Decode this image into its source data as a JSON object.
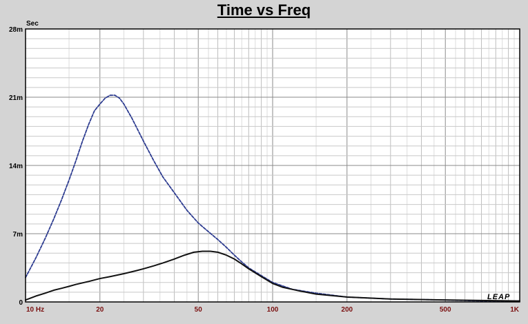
{
  "chart_data": {
    "type": "line",
    "title": "Time vs Freq",
    "ylabel": "Sec",
    "xscale": "log",
    "xlim": [
      10,
      1000
    ],
    "ylim": [
      0,
      0.028
    ],
    "x_tick_labels": [
      {
        "value": 10,
        "label": "10 Hz"
      },
      {
        "value": 20,
        "label": "20"
      },
      {
        "value": 50,
        "label": "50"
      },
      {
        "value": 100,
        "label": "100"
      },
      {
        "value": 200,
        "label": "200"
      },
      {
        "value": 500,
        "label": "500"
      },
      {
        "value": 1000,
        "label": "1K"
      }
    ],
    "y_tick_labels": [
      {
        "value": 0,
        "label": "0"
      },
      {
        "value": 0.007,
        "label": "7m"
      },
      {
        "value": 0.014,
        "label": "14m"
      },
      {
        "value": 0.021,
        "label": "21m"
      },
      {
        "value": 0.028,
        "label": "28m"
      }
    ],
    "grid": true,
    "series": [
      {
        "style": "dashed",
        "color": "#2b3a8f",
        "points": [
          [
            10,
            0.0025
          ],
          [
            11,
            0.0045
          ],
          [
            12,
            0.0065
          ],
          [
            13,
            0.0085
          ],
          [
            14,
            0.0105
          ],
          [
            15,
            0.0125
          ],
          [
            16,
            0.0145
          ],
          [
            17,
            0.0165
          ],
          [
            18,
            0.0182
          ],
          [
            19,
            0.0196
          ],
          [
            20,
            0.0203
          ],
          [
            21,
            0.0209
          ],
          [
            22,
            0.0212
          ],
          [
            23,
            0.0212
          ],
          [
            24,
            0.0209
          ],
          [
            25,
            0.0203
          ],
          [
            27,
            0.0188
          ],
          [
            30,
            0.0165
          ],
          [
            33,
            0.0145
          ],
          [
            36,
            0.0128
          ],
          [
            40,
            0.0112
          ],
          [
            45,
            0.0094
          ],
          [
            50,
            0.0081
          ],
          [
            55,
            0.0072
          ],
          [
            60,
            0.0064
          ],
          [
            65,
            0.0056
          ],
          [
            70,
            0.0048
          ],
          [
            75,
            0.0041
          ],
          [
            80,
            0.0035
          ],
          [
            90,
            0.0027
          ],
          [
            100,
            0.002
          ],
          [
            120,
            0.0013
          ],
          [
            150,
            0.0009
          ],
          [
            200,
            0.0005
          ],
          [
            300,
            0.0003
          ],
          [
            500,
            0.0002
          ],
          [
            700,
            0.0001
          ],
          [
            1000,
            0.0001
          ]
        ]
      },
      {
        "style": "solid",
        "color": "#111111",
        "points": [
          [
            10,
            0.0002
          ],
          [
            11,
            0.0006
          ],
          [
            12,
            0.0009
          ],
          [
            13,
            0.0012
          ],
          [
            14,
            0.0014
          ],
          [
            15,
            0.0016
          ],
          [
            16,
            0.0018
          ],
          [
            18,
            0.0021
          ],
          [
            20,
            0.0024
          ],
          [
            22,
            0.0026
          ],
          [
            25,
            0.0029
          ],
          [
            28,
            0.0032
          ],
          [
            30,
            0.0034
          ],
          [
            33,
            0.0037
          ],
          [
            36,
            0.004
          ],
          [
            40,
            0.0044
          ],
          [
            44,
            0.0048
          ],
          [
            48,
            0.0051
          ],
          [
            52,
            0.0052
          ],
          [
            56,
            0.0052
          ],
          [
            60,
            0.0051
          ],
          [
            65,
            0.0048
          ],
          [
            70,
            0.0044
          ],
          [
            75,
            0.0039
          ],
          [
            80,
            0.0034
          ],
          [
            90,
            0.0026
          ],
          [
            100,
            0.0019
          ],
          [
            110,
            0.0015
          ],
          [
            130,
            0.0011
          ],
          [
            150,
            0.0008
          ],
          [
            200,
            0.0005
          ],
          [
            300,
            0.0003
          ],
          [
            500,
            0.0002
          ],
          [
            700,
            0.00015
          ],
          [
            1000,
            0.0001
          ]
        ]
      }
    ],
    "logo_text": "LEAP"
  }
}
